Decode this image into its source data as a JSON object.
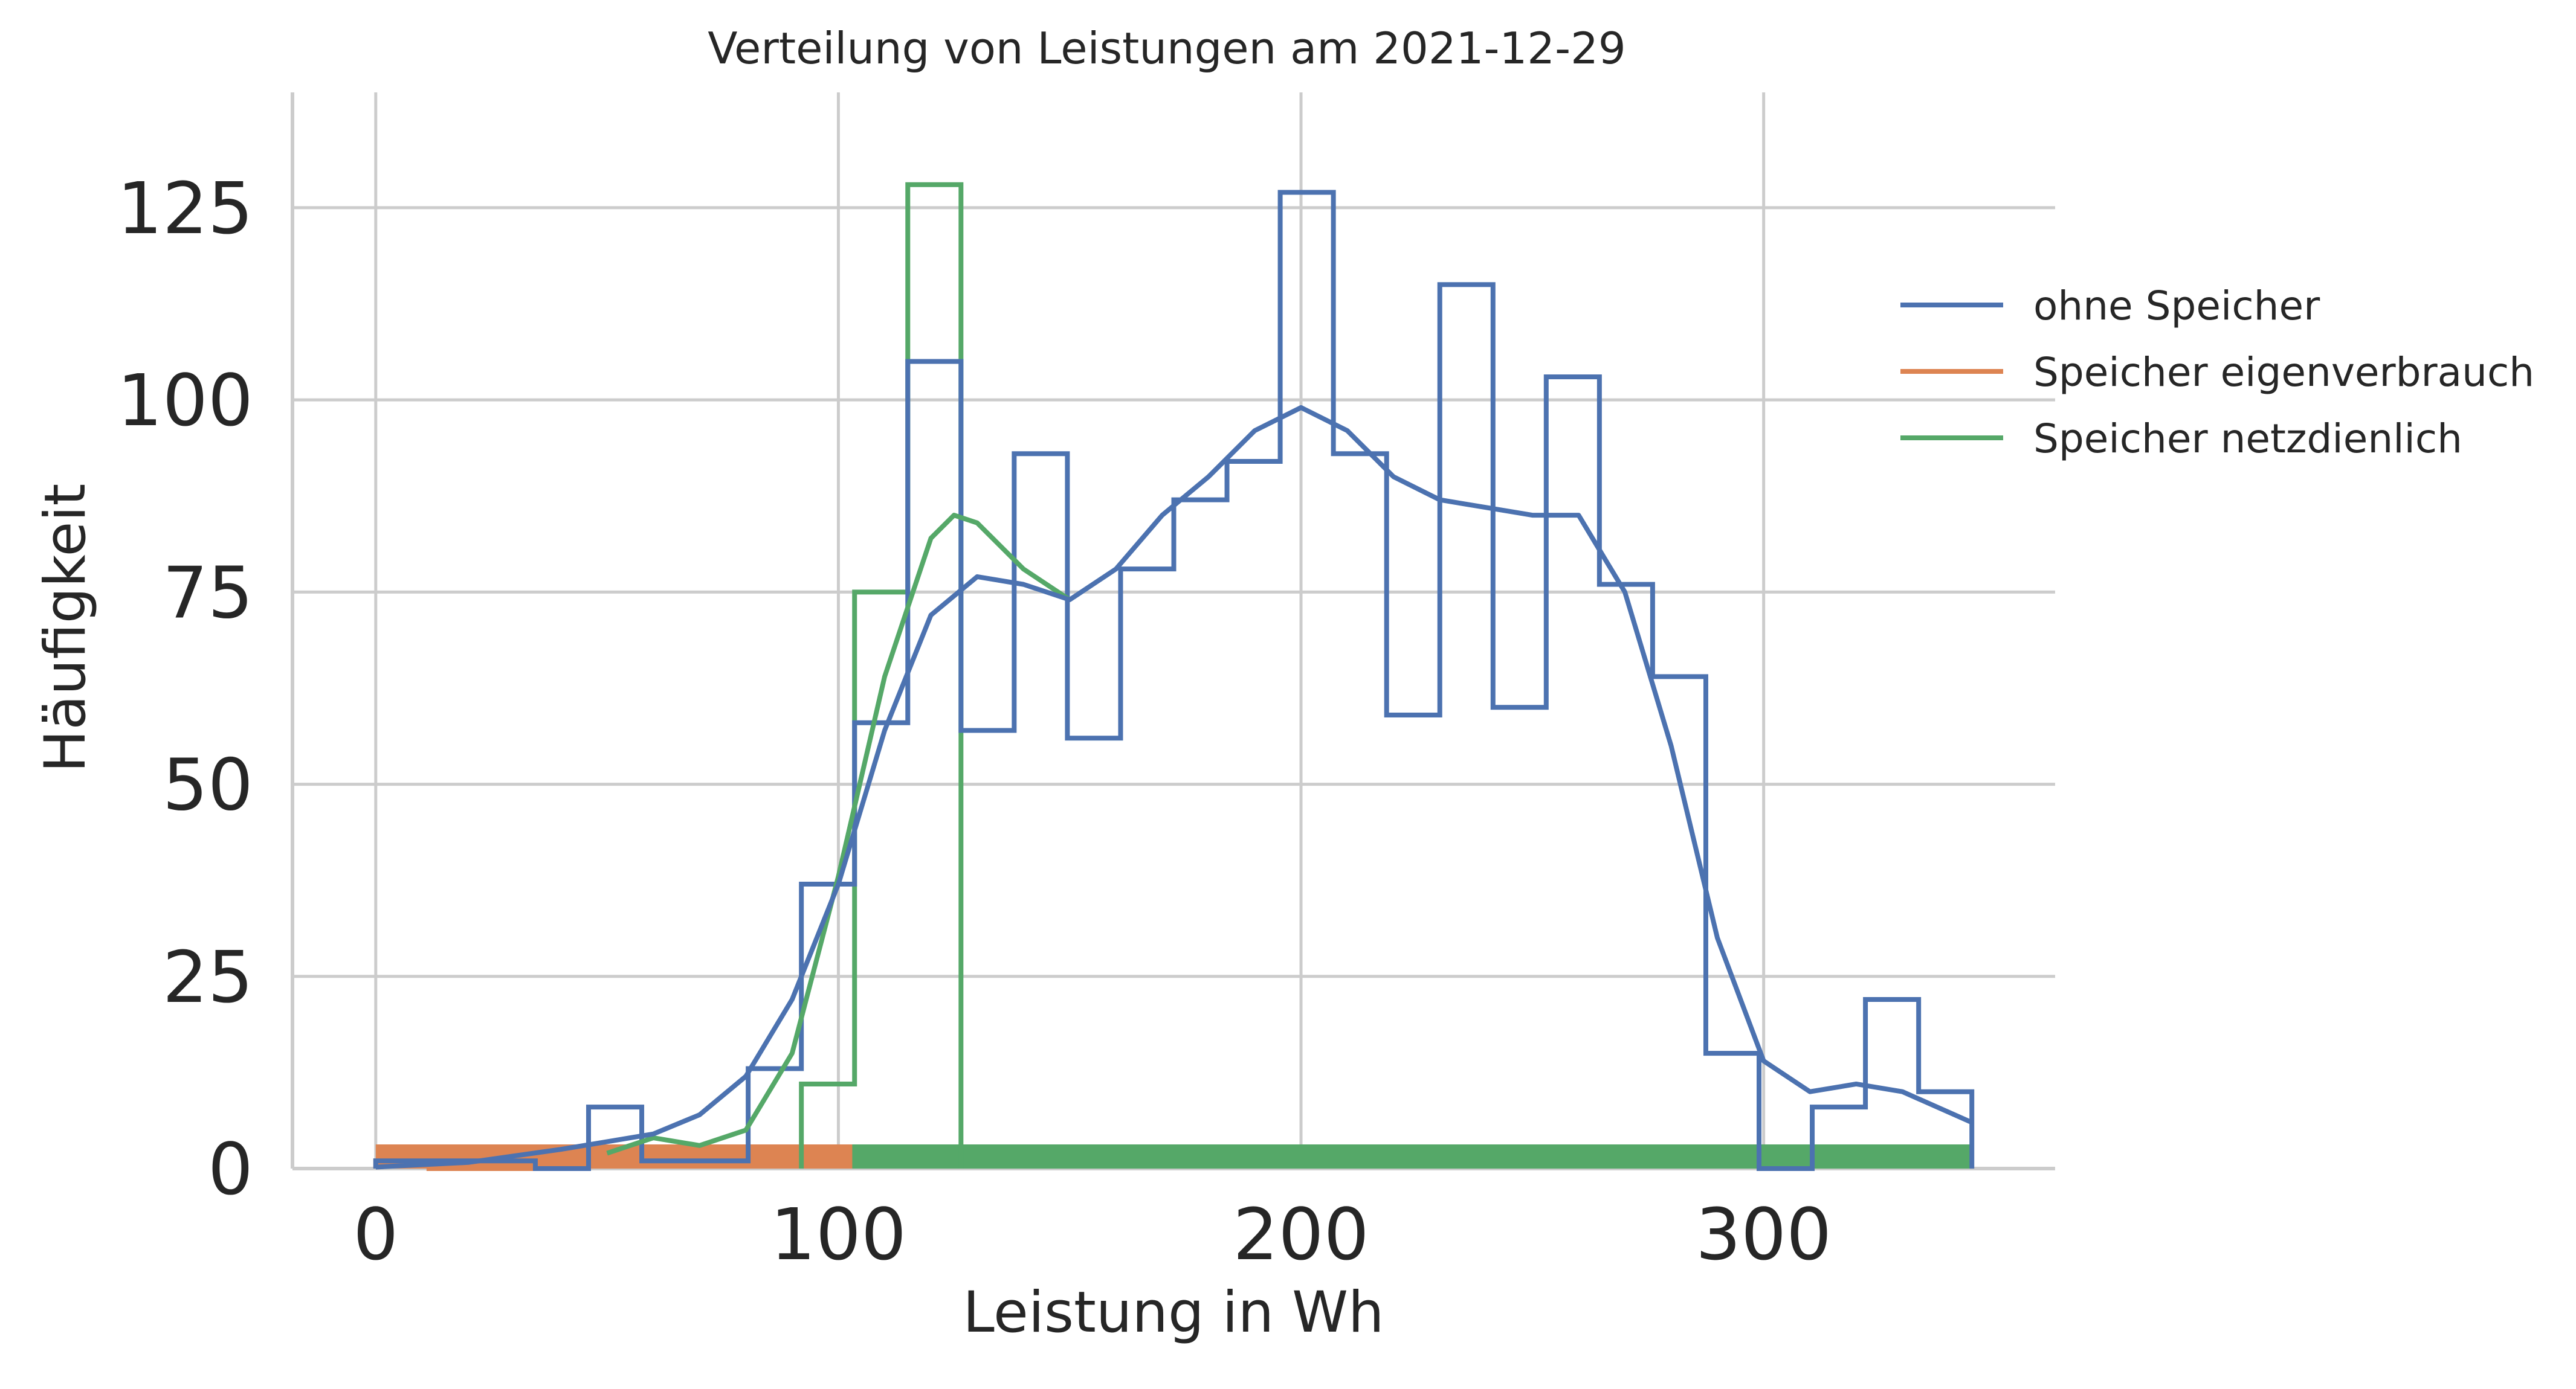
{
  "chart_data": {
    "type": "histogram",
    "title": "Verteilung von Leistungen am 2021-12-29",
    "xlabel": "Leistung in Wh",
    "ylabel": "Häufigkeit",
    "xlim": [
      -18,
      363
    ],
    "ylim": [
      0,
      140
    ],
    "xticks": [
      0,
      100,
      200,
      300
    ],
    "yticks": [
      0,
      25,
      50,
      75,
      100,
      125
    ],
    "grid": true,
    "legend": {
      "placement": "right"
    },
    "series": [
      {
        "name": "ohne Speicher",
        "color": "#4c72b0",
        "bin_edges": [
          0,
          11.5,
          23,
          34.5,
          46,
          57.5,
          69,
          80.5,
          92,
          103.5,
          115,
          126.5,
          138,
          149.5,
          161,
          172.5,
          184,
          195.5,
          207,
          218.5,
          230,
          241.5,
          253,
          264.5,
          276,
          287.5,
          299,
          310.5,
          322,
          333.5,
          345
        ],
        "counts": [
          1,
          1,
          1,
          0,
          8,
          1,
          1,
          13,
          37,
          58,
          105,
          57,
          93,
          56,
          78,
          87,
          92,
          127,
          93,
          59,
          115,
          60,
          103,
          76,
          64,
          15,
          0,
          8,
          22,
          10
        ],
        "kde": {
          "x": [
            0,
            20,
            40,
            60,
            70,
            80,
            90,
            100,
            110,
            120,
            130,
            140,
            150,
            160,
            170,
            180,
            190,
            200,
            210,
            220,
            230,
            240,
            250,
            260,
            270,
            280,
            290,
            300,
            310,
            320,
            330,
            345
          ],
          "y": [
            0.2,
            0.8,
            2.5,
            4.5,
            7,
            12,
            22,
            37,
            57,
            72,
            77,
            76,
            74,
            78,
            85,
            90,
            96,
            99,
            96,
            90,
            87,
            86,
            85,
            85,
            75,
            55,
            30,
            14,
            10,
            11,
            10,
            6
          ]
        }
      },
      {
        "name": "Speicher eigenverbrauch",
        "color": "#dd8452",
        "bin_edges": [
          0,
          11.5,
          23,
          34.5
        ],
        "counts": [
          1,
          0,
          0
        ]
      },
      {
        "name": "Speicher netzdienlich",
        "color": "#55a868",
        "bin_edges": [
          92,
          103.5,
          115,
          126.5
        ],
        "counts": [
          11,
          75,
          128
        ],
        "kde": {
          "x": [
            50,
            60,
            70,
            80,
            90,
            100,
            110,
            120,
            125,
            130,
            140,
            150
          ],
          "y": [
            2,
            4,
            3,
            5,
            15,
            38,
            64,
            82,
            85,
            84,
            78,
            74
          ]
        }
      }
    ],
    "rugs": [
      {
        "series": "Speicher netzdienlich",
        "x_start": 52,
        "x_end": 345
      },
      {
        "series": "Speicher eigenverbrauch",
        "x_start": 0,
        "x_end": 103
      }
    ]
  }
}
